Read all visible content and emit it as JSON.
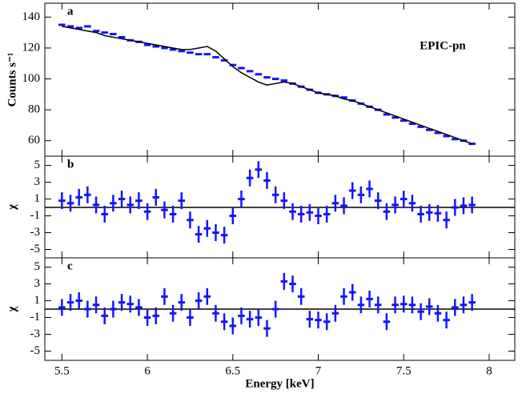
{
  "chart_data": [
    {
      "type": "errorbar",
      "panel_label": "a",
      "annotation": "EPIC-pn",
      "y_label": "Counts s⁻¹",
      "x": [
        5.5,
        5.55,
        5.6,
        5.65,
        5.7,
        5.75,
        5.8,
        5.85,
        5.9,
        5.95,
        6.0,
        6.05,
        6.1,
        6.15,
        6.2,
        6.25,
        6.3,
        6.35,
        6.4,
        6.45,
        6.5,
        6.55,
        6.6,
        6.65,
        6.7,
        6.75,
        6.8,
        6.85,
        6.9,
        6.95,
        7.0,
        7.05,
        7.1,
        7.15,
        7.2,
        7.25,
        7.3,
        7.35,
        7.4,
        7.45,
        7.5,
        7.55,
        7.6,
        7.65,
        7.7,
        7.75,
        7.8,
        7.85,
        7.9
      ],
      "series": [
        {
          "color": "#1414ff",
          "xerr": 0.02,
          "values": [
            135,
            134,
            133,
            134,
            131,
            130,
            129,
            127,
            125,
            124,
            122,
            121,
            120,
            119,
            118,
            117,
            116,
            116,
            114,
            112,
            109,
            107,
            105,
            103,
            101,
            100,
            99,
            97,
            95,
            93,
            91,
            90,
            89,
            88,
            86,
            84,
            82,
            80,
            77,
            75,
            73,
            71,
            69,
            67,
            65,
            63,
            61,
            60,
            58
          ]
        },
        {
          "color": "#000000",
          "style": "line",
          "values": [
            134,
            133,
            132,
            131,
            130,
            128,
            127,
            126,
            125,
            124,
            123,
            122,
            121,
            120,
            119,
            119,
            120,
            121,
            118,
            113,
            108,
            104,
            101,
            98,
            96,
            97,
            98,
            97,
            95,
            93,
            91,
            90,
            89,
            87,
            86,
            84,
            82,
            80,
            78,
            76,
            74,
            72,
            70,
            68,
            66,
            64,
            62,
            60,
            58
          ]
        }
      ],
      "xlim": [
        5.4,
        8.15
      ],
      "ylim": [
        50,
        149
      ],
      "yticks": [
        60,
        80,
        100,
        120,
        140
      ]
    },
    {
      "type": "errorbar",
      "panel_label": "b",
      "y_label": "χ",
      "reference_line": 0,
      "x": [
        5.5,
        5.55,
        5.6,
        5.65,
        5.7,
        5.75,
        5.8,
        5.85,
        5.9,
        5.95,
        6.0,
        6.05,
        6.1,
        6.15,
        6.2,
        6.25,
        6.3,
        6.35,
        6.4,
        6.45,
        6.5,
        6.55,
        6.6,
        6.65,
        6.7,
        6.75,
        6.8,
        6.85,
        6.9,
        6.95,
        7.0,
        7.05,
        7.1,
        7.15,
        7.2,
        7.25,
        7.3,
        7.35,
        7.4,
        7.45,
        7.5,
        7.55,
        7.6,
        7.65,
        7.7,
        7.75,
        7.8,
        7.85,
        7.9
      ],
      "series": [
        {
          "color": "#1414ff",
          "xerr": 0.02,
          "yerr": 1,
          "values": [
            0.8,
            0.5,
            1.2,
            1.5,
            0.3,
            -0.8,
            0.5,
            1.0,
            0.3,
            0.8,
            -0.5,
            1.2,
            -0.3,
            -0.8,
            0.8,
            -1.5,
            -3.2,
            -2.5,
            -3.0,
            -3.3,
            -1.0,
            1.0,
            3.5,
            4.5,
            3.2,
            1.5,
            0.8,
            -0.5,
            -0.8,
            -0.6,
            -1.0,
            -0.8,
            0.5,
            0.2,
            2.0,
            1.5,
            2.2,
            0.8,
            -0.5,
            0.3,
            1.0,
            0.5,
            -0.8,
            -0.6,
            -0.7,
            -1.5,
            0,
            0.2,
            0.3
          ]
        }
      ],
      "xlim": [
        5.4,
        8.15
      ],
      "ylim": [
        -6,
        6.1
      ],
      "yticks": [
        5,
        3,
        1,
        -1,
        -3,
        -5
      ]
    },
    {
      "type": "errorbar",
      "panel_label": "c",
      "y_label": "χ",
      "x_label": "Energy [keV]",
      "reference_line": 0,
      "x": [
        5.5,
        5.55,
        5.6,
        5.65,
        5.7,
        5.75,
        5.8,
        5.85,
        5.9,
        5.95,
        6.0,
        6.05,
        6.1,
        6.15,
        6.2,
        6.25,
        6.3,
        6.35,
        6.4,
        6.45,
        6.5,
        6.55,
        6.6,
        6.65,
        6.7,
        6.75,
        6.8,
        6.85,
        6.9,
        6.95,
        7.0,
        7.05,
        7.1,
        7.15,
        7.2,
        7.25,
        7.3,
        7.35,
        7.4,
        7.45,
        7.5,
        7.55,
        7.6,
        7.65,
        7.7,
        7.75,
        7.8,
        7.85,
        7.9
      ],
      "series": [
        {
          "color": "#1414ff",
          "xerr": 0.02,
          "yerr": 1,
          "values": [
            0.2,
            0.8,
            1.0,
            0.0,
            0.5,
            -0.8,
            0.0,
            0.8,
            0.6,
            0.2,
            -1.0,
            -0.8,
            1.5,
            -0.5,
            0.8,
            -1.0,
            1.0,
            1.5,
            -0.5,
            -1.5,
            -2.0,
            -0.8,
            -1.2,
            -1.0,
            -2.3,
            0.0,
            3.3,
            3.0,
            1.5,
            -1.2,
            -1.3,
            -1.5,
            -0.5,
            1.5,
            2.0,
            0.5,
            1.2,
            0.5,
            -1.5,
            0.5,
            0.6,
            0.5,
            -0.3,
            0.3,
            -0.5,
            -1.3,
            0.2,
            0.5,
            0.8
          ]
        }
      ],
      "xlim": [
        5.4,
        8.15
      ],
      "ylim": [
        -6.1,
        6.1
      ],
      "yticks": [
        5,
        3,
        1,
        -1,
        -3,
        -5
      ],
      "xticks": [
        5.5,
        6,
        6.5,
        7,
        7.5,
        8
      ]
    }
  ]
}
